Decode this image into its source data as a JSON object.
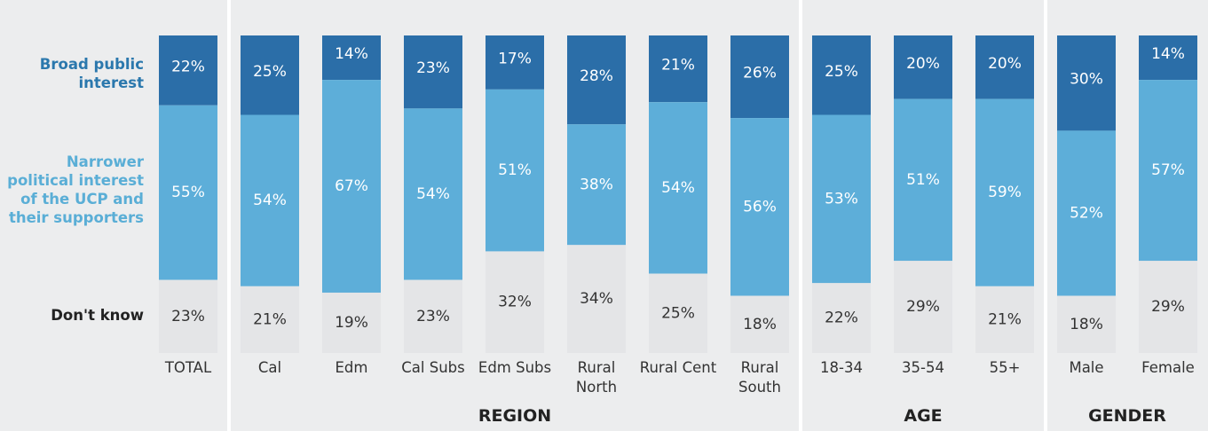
{
  "chart_data": {
    "type": "stacked_bar",
    "categories": [
      "TOTAL",
      "Cal",
      "Edm",
      "Cal Subs",
      "Edm Subs",
      "Rural\nNorth",
      "Rural Cent",
      "Rural\nSouth",
      "18-34",
      "35-54",
      "55+",
      "Male",
      "Female"
    ],
    "series": [
      {
        "name": "Broad public interest",
        "color": "#2b6ea8",
        "values": [
          22,
          25,
          14,
          23,
          17,
          28,
          21,
          26,
          25,
          20,
          20,
          30,
          14
        ],
        "value_labels": [
          "22%",
          "25%",
          "14%",
          "23%",
          "17%",
          "28%",
          "21%",
          "26%",
          "25%",
          "20%",
          "20%",
          "30%",
          "14%"
        ]
      },
      {
        "name": "Narrower political interest of the UCP and their supporters",
        "color": "#5daed9",
        "values": [
          55,
          54,
          67,
          54,
          51,
          38,
          54,
          56,
          53,
          51,
          59,
          52,
          57
        ],
        "value_labels": [
          "55%",
          "54%",
          "67%",
          "54%",
          "51%",
          "38%",
          "54%",
          "56%",
          "53%",
          "51%",
          "59%",
          "52%",
          "57%"
        ]
      },
      {
        "name": "Don't know",
        "color": "#e4e5e7",
        "values": [
          23,
          21,
          19,
          23,
          32,
          34,
          25,
          18,
          22,
          29,
          21,
          18,
          29
        ],
        "value_labels": [
          "23%",
          "21%",
          "19%",
          "23%",
          "32%",
          "34%",
          "25%",
          "18%",
          "22%",
          "29%",
          "21%",
          "18%",
          "29%"
        ]
      }
    ],
    "groups": [
      {
        "label": "REGION",
        "first": 1,
        "last": 7
      },
      {
        "label": "AGE",
        "first": 8,
        "last": 10
      },
      {
        "label": "GENDER",
        "first": 11,
        "last": 12
      }
    ],
    "legend_colors": [
      "#2b78ad",
      "#5aaed6",
      "#222222"
    ],
    "ylim": [
      0,
      100
    ]
  }
}
